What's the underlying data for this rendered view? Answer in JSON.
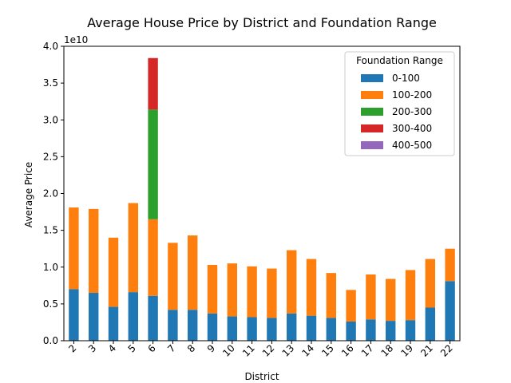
{
  "chart_data": {
    "type": "bar",
    "stacked": true,
    "title": "Average House Price by District and Foundation Range",
    "xlabel": "District",
    "ylabel": "Average Price",
    "y_offset_label": "1e10",
    "y_scale_factor": 10000000000.0,
    "ylim": [
      0,
      40000000000.0
    ],
    "y_ticks": [
      0,
      5000000000.0,
      10000000000.0,
      15000000000.0,
      20000000000.0,
      25000000000.0,
      30000000000.0,
      35000000000.0,
      40000000000.0
    ],
    "y_tick_labels": [
      "0.0",
      "0.5",
      "1.0",
      "1.5",
      "2.0",
      "2.5",
      "3.0",
      "3.5",
      "4.0"
    ],
    "categories": [
      "2",
      "3",
      "4",
      "5",
      "6",
      "7",
      "8",
      "9",
      "10",
      "11",
      "12",
      "13",
      "14",
      "15",
      "16",
      "17",
      "18",
      "19",
      "21",
      "22"
    ],
    "legend_title": "Foundation Range",
    "legend_position": "top-right",
    "grid": false,
    "series": [
      {
        "name": "0-100",
        "color": "#1f77b4",
        "values": [
          7000000000.0,
          6500000000.0,
          4600000000.0,
          6600000000.0,
          6100000000.0,
          4200000000.0,
          4200000000.0,
          3700000000.0,
          3300000000.0,
          3200000000.0,
          3100000000.0,
          3700000000.0,
          3400000000.0,
          3100000000.0,
          2600000000.0,
          2900000000.0,
          2700000000.0,
          2800000000.0,
          4500000000.0,
          8100000000.0
        ]
      },
      {
        "name": "100-200",
        "color": "#ff7f0e",
        "values": [
          11100000000.0,
          11400000000.0,
          9400000000.0,
          12100000000.0,
          10400000000.0,
          9100000000.0,
          10100000000.0,
          6600000000.0,
          7200000000.0,
          6900000000.0,
          6700000000.0,
          8600000000.0,
          7700000000.0,
          6100000000.0,
          4300000000.0,
          6100000000.0,
          5700000000.0,
          6800000000.0,
          6600000000.0,
          4400000000.0
        ]
      },
      {
        "name": "200-300",
        "color": "#2ca02c",
        "values": [
          0,
          0,
          0,
          0,
          14900000000.0,
          0,
          0,
          0,
          0,
          0,
          0,
          0,
          0,
          0,
          0,
          0,
          0,
          0,
          0,
          0
        ]
      },
      {
        "name": "300-400",
        "color": "#d62728",
        "values": [
          0,
          0,
          0,
          0,
          7000000000.0,
          0,
          0,
          0,
          0,
          0,
          0,
          0,
          0,
          0,
          0,
          0,
          0,
          0,
          0,
          0
        ]
      },
      {
        "name": "400-500",
        "color": "#9467bd",
        "values": [
          0,
          0,
          0,
          0,
          0,
          0,
          0,
          0,
          0,
          0,
          0,
          0,
          0,
          0,
          0,
          0,
          0,
          0,
          0,
          0
        ]
      }
    ]
  }
}
